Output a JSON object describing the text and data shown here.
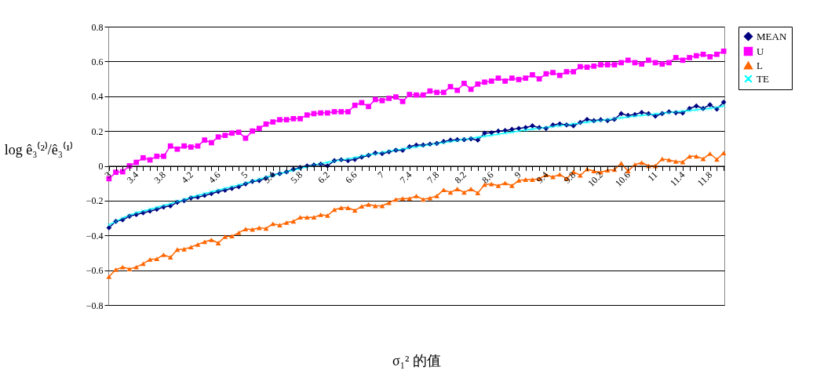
{
  "chart_data": {
    "type": "line",
    "xlabel": "σ₁² 的值",
    "ylabel": "log ê₃⁽²⁾/ê₃⁽¹⁾",
    "categories": [
      "3",
      null,
      null,
      null,
      "3.4",
      null,
      null,
      null,
      "3.8",
      null,
      null,
      null,
      "4.2",
      null,
      null,
      null,
      "4.6",
      null,
      null,
      null,
      "5",
      null,
      null,
      null,
      "5.4",
      null,
      null,
      null,
      "5.8",
      null,
      null,
      null,
      "6.2",
      null,
      null,
      null,
      "6.6",
      null,
      null,
      null,
      "7",
      null,
      null,
      null,
      "7.4",
      null,
      null,
      null,
      "7.8",
      null,
      null,
      null,
      "8.2",
      null,
      null,
      null,
      "8.6",
      null,
      null,
      null,
      "9",
      null,
      null,
      null,
      "9.4",
      null,
      null,
      null,
      "9.8",
      null,
      null,
      null,
      "10.2",
      null,
      null,
      null,
      "10.6",
      null,
      null,
      null,
      "11",
      null,
      null,
      null,
      "11.4",
      null,
      null,
      null,
      "11.8",
      null,
      null
    ],
    "series": [
      {
        "name": "MEAN",
        "color": "#000080",
        "marker": "diamond",
        "values": [
          -0.356,
          -0.319,
          -0.31,
          -0.29,
          -0.28,
          -0.27,
          -0.26,
          -0.25,
          -0.237,
          -0.23,
          -0.21,
          -0.2,
          -0.185,
          -0.18,
          -0.17,
          -0.16,
          -0.148,
          -0.14,
          -0.13,
          -0.12,
          -0.104,
          -0.09,
          -0.085,
          -0.07,
          -0.052,
          -0.045,
          -0.035,
          -0.02,
          -0.01,
          0.0,
          0.005,
          0.01,
          0.0,
          0.03,
          0.035,
          0.03,
          0.037,
          0.05,
          0.06,
          0.074,
          0.07,
          0.08,
          0.09,
          0.089,
          0.11,
          0.119,
          0.12,
          0.125,
          0.129,
          0.14,
          0.148,
          0.15,
          0.15,
          0.155,
          0.148,
          0.188,
          0.19,
          0.2,
          0.203,
          0.21,
          0.215,
          0.22,
          0.23,
          0.22,
          0.215,
          0.235,
          0.241,
          0.235,
          0.23,
          0.25,
          0.267,
          0.26,
          0.265,
          0.26,
          0.267,
          0.3,
          0.29,
          0.295,
          0.307,
          0.3,
          0.286,
          0.3,
          0.311,
          0.305,
          0.304,
          0.33,
          0.344,
          0.33,
          0.351,
          0.326,
          0.366
        ]
      },
      {
        "name": "U",
        "color": "#ff00ff",
        "marker": "square",
        "values": [
          -0.074,
          -0.037,
          -0.034,
          0.0,
          0.02,
          0.046,
          0.034,
          0.055,
          0.055,
          0.114,
          0.096,
          0.114,
          0.108,
          0.114,
          0.148,
          0.133,
          0.166,
          0.175,
          0.188,
          0.193,
          0.159,
          0.2,
          0.215,
          0.24,
          0.252,
          0.265,
          0.265,
          0.271,
          0.271,
          0.292,
          0.3,
          0.304,
          0.304,
          0.311,
          0.311,
          0.311,
          0.348,
          0.363,
          0.341,
          0.381,
          0.375,
          0.388,
          0.396,
          0.37,
          0.41,
          0.407,
          0.407,
          0.43,
          0.422,
          0.422,
          0.455,
          0.434,
          0.474,
          0.44,
          0.47,
          0.481,
          0.487,
          0.504,
          0.487,
          0.504,
          0.496,
          0.504,
          0.523,
          0.5,
          0.529,
          0.536,
          0.52,
          0.541,
          0.541,
          0.57,
          0.567,
          0.573,
          0.581,
          0.581,
          0.581,
          0.593,
          0.607,
          0.593,
          0.585,
          0.607,
          0.593,
          0.585,
          0.593,
          0.622,
          0.607,
          0.622,
          0.633,
          0.641,
          0.627,
          0.641,
          0.659
        ]
      },
      {
        "name": "L",
        "color": "#ff6600",
        "marker": "triangle",
        "values": [
          -0.637,
          -0.597,
          -0.582,
          -0.593,
          -0.582,
          -0.563,
          -0.538,
          -0.535,
          -0.511,
          -0.526,
          -0.481,
          -0.479,
          -0.467,
          -0.452,
          -0.437,
          -0.425,
          -0.444,
          -0.407,
          -0.404,
          -0.385,
          -0.363,
          -0.366,
          -0.356,
          -0.36,
          -0.333,
          -0.341,
          -0.326,
          -0.319,
          -0.296,
          -0.296,
          -0.296,
          -0.281,
          -0.286,
          -0.252,
          -0.241,
          -0.241,
          -0.256,
          -0.233,
          -0.222,
          -0.23,
          -0.23,
          -0.212,
          -0.193,
          -0.188,
          -0.188,
          -0.173,
          -0.193,
          -0.185,
          -0.173,
          -0.138,
          -0.153,
          -0.133,
          -0.153,
          -0.133,
          -0.156,
          -0.108,
          -0.104,
          -0.114,
          -0.099,
          -0.114,
          -0.084,
          -0.079,
          -0.079,
          -0.074,
          -0.052,
          -0.064,
          -0.049,
          -0.074,
          -0.034,
          -0.055,
          -0.019,
          -0.03,
          -0.037,
          -0.025,
          -0.022,
          0.015,
          -0.03,
          0.007,
          0.019,
          0.0,
          0.0,
          0.04,
          0.034,
          0.025,
          0.022,
          0.055,
          0.055,
          0.04,
          0.07,
          0.037,
          0.074
        ]
      },
      {
        "name": "TE",
        "color": "#00ffff",
        "marker": "cross",
        "values": [
          -0.34,
          -0.32,
          -0.3,
          -0.285,
          -0.27,
          -0.26,
          -0.25,
          -0.24,
          -0.228,
          -0.218,
          -0.205,
          -0.195,
          -0.18,
          -0.17,
          -0.16,
          -0.15,
          -0.14,
          -0.13,
          -0.12,
          -0.11,
          -0.1,
          -0.088,
          -0.078,
          -0.066,
          -0.055,
          -0.045,
          -0.035,
          -0.025,
          -0.015,
          -0.005,
          0.005,
          0.012,
          0.02,
          0.027,
          0.034,
          0.04,
          0.047,
          0.055,
          0.063,
          0.07,
          0.077,
          0.084,
          0.09,
          0.097,
          0.104,
          0.11,
          0.116,
          0.122,
          0.128,
          0.134,
          0.14,
          0.146,
          0.152,
          0.158,
          0.164,
          0.17,
          0.176,
          0.182,
          0.188,
          0.194,
          0.2,
          0.206,
          0.211,
          0.216,
          0.221,
          0.226,
          0.231,
          0.236,
          0.241,
          0.246,
          0.251,
          0.256,
          0.261,
          0.266,
          0.271,
          0.276,
          0.281,
          0.286,
          0.29,
          0.294,
          0.298,
          0.302,
          0.306,
          0.31,
          0.314,
          0.318,
          0.322,
          0.326,
          0.33,
          0.335,
          0.345
        ]
      }
    ],
    "ylim": [
      -0.8,
      0.8
    ],
    "yticks": [
      -0.8,
      -0.6,
      -0.4,
      -0.2,
      0,
      0.2,
      0.4,
      0.6,
      0.8
    ],
    "grid": "y",
    "legend": "right",
    "line_style": "solid"
  }
}
